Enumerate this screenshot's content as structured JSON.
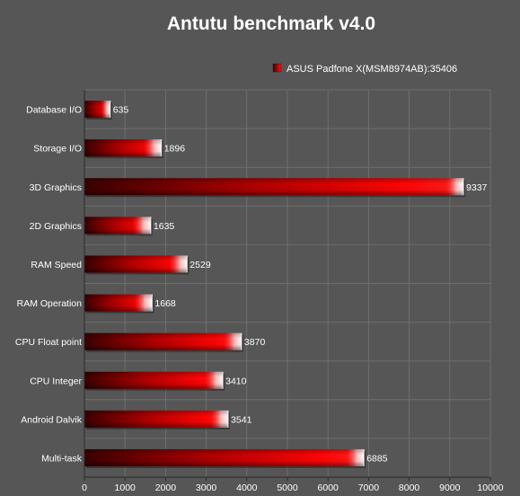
{
  "chart_data": {
    "type": "bar",
    "orientation": "horizontal",
    "title": "Antutu benchmark v4.0",
    "categories": [
      "Database I/O",
      "Storage I/O",
      "3D Graphics",
      "2D Graphics",
      "RAM Speed",
      "RAM Operation",
      "CPU Float point",
      "CPU Integer",
      "Android Dalvik",
      "Multi-task"
    ],
    "series": [
      {
        "name": "ASUS Padfone X(MSM8974AB):35406",
        "values": [
          635,
          1896,
          9337,
          1635,
          2529,
          1668,
          3870,
          3410,
          3541,
          6885
        ],
        "color": "#ff0000"
      }
    ],
    "xlim": [
      0,
      10000
    ],
    "xticks": [
      0,
      1000,
      2000,
      3000,
      4000,
      5000,
      6000,
      7000,
      8000,
      9000,
      10000
    ],
    "xtick_labels": [
      "0",
      "1000",
      "2000",
      "3000",
      "4000",
      "5000",
      "6000",
      "7000",
      "8000",
      "9000",
      "10000"
    ],
    "xlabel": "",
    "ylabel": "",
    "grid": true,
    "legend_position": "top-right",
    "data_labels": true
  },
  "colors": {
    "background": "#565656",
    "grid": "#6e6e6e",
    "axis": "#2a2a2a",
    "bar_dark": "#3a0000",
    "bar_mid": "#c80000",
    "bar_bright": "#ff0a0a",
    "bar_highlight": "#ffffff",
    "text": "#ffffff"
  }
}
